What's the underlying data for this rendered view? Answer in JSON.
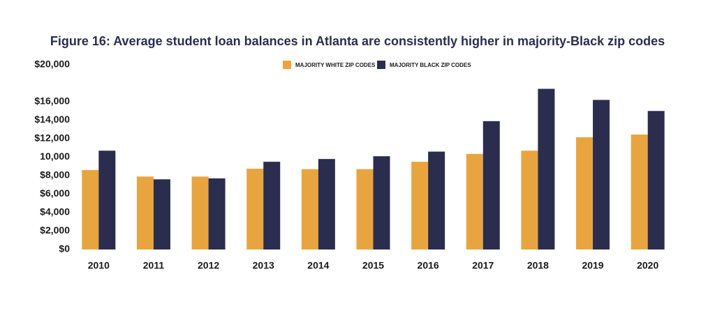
{
  "chart_data": {
    "type": "bar",
    "title": "Figure 16: Average student loan balances in Atlanta are consistently higher in majority-Black zip codes",
    "categories": [
      "2010",
      "2011",
      "2012",
      "2013",
      "2014",
      "2015",
      "2016",
      "2017",
      "2018",
      "2019",
      "2020"
    ],
    "series": [
      {
        "name": "MAJORITY WHITE ZIP CODES",
        "color": "#e8a53f",
        "values": [
          8600,
          7900,
          7900,
          8750,
          8700,
          8700,
          9500,
          10350,
          10700,
          12150,
          12450
        ]
      },
      {
        "name": "MAJORITY BLACK ZIP CODES",
        "color": "#2b2d4e",
        "values": [
          10700,
          7600,
          7700,
          9500,
          9800,
          10100,
          10600,
          13900,
          17400,
          16200,
          15000
        ]
      }
    ],
    "ylim": [
      0,
      20000
    ],
    "yticks": [
      {
        "value": 0,
        "label": "$0"
      },
      {
        "value": 2000,
        "label": "$2,000"
      },
      {
        "value": 4000,
        "label": "$4,000"
      },
      {
        "value": 6000,
        "label": "$6,000"
      },
      {
        "value": 8000,
        "label": "$8,000"
      },
      {
        "value": 10000,
        "label": "10,000"
      },
      {
        "value": 12000,
        "label": "$12,000"
      },
      {
        "value": 14000,
        "label": "$14,000"
      },
      {
        "value": 16000,
        "label": "$16,000"
      },
      {
        "value": 20000,
        "label": "$20,000"
      }
    ],
    "grid": false,
    "legend": "top"
  }
}
